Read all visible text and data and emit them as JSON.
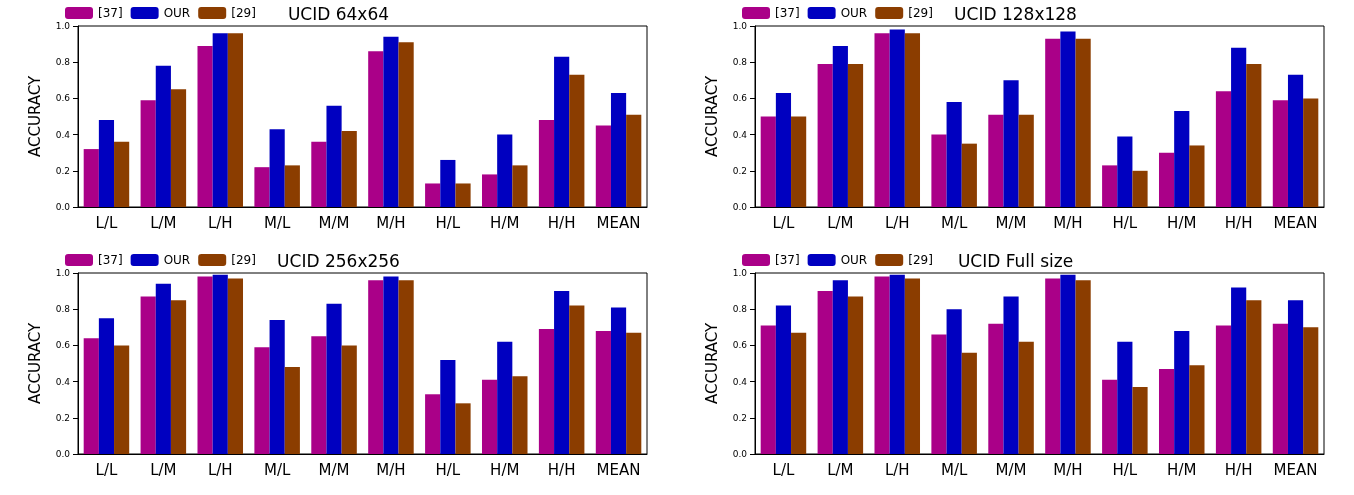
{
  "chart_data": [
    {
      "type": "bar",
      "title": "UCID 64x64",
      "ylabel": "ACCURACY",
      "categories": [
        "L/L",
        "L/M",
        "L/H",
        "M/L",
        "M/M",
        "M/H",
        "H/L",
        "H/M",
        "H/H",
        "MEAN"
      ],
      "series": [
        {
          "name": "[37]",
          "color": "#aa0088",
          "values": [
            0.32,
            0.59,
            0.89,
            0.22,
            0.36,
            0.86,
            0.13,
            0.18,
            0.48,
            0.45
          ]
        },
        {
          "name": "OUR",
          "color": "#0000c0",
          "values": [
            0.48,
            0.78,
            0.96,
            0.43,
            0.56,
            0.94,
            0.26,
            0.4,
            0.83,
            0.63
          ]
        },
        {
          "name": "[29]",
          "color": "#8b3d00",
          "values": [
            0.36,
            0.65,
            0.96,
            0.23,
            0.42,
            0.91,
            0.13,
            0.23,
            0.73,
            0.51
          ]
        }
      ],
      "ylim": [
        0,
        1
      ],
      "yticks": [
        {
          "value": 0,
          "label": "0.0"
        },
        {
          "value": 0.2,
          "label": "0.2"
        },
        {
          "value": 0.4,
          "label": "0.4"
        },
        {
          "value": 0.6,
          "label": "0.6"
        },
        {
          "value": 0.8,
          "label": "0.8"
        },
        {
          "value": 1,
          "label": "1.0"
        }
      ],
      "grid": false,
      "legend": "top left"
    },
    {
      "type": "bar",
      "title": "UCID 128x128",
      "ylabel": "ACCURACY",
      "categories": [
        "L/L",
        "L/M",
        "L/H",
        "M/L",
        "M/M",
        "M/H",
        "H/L",
        "H/M",
        "H/H",
        "MEAN"
      ],
      "series": [
        {
          "name": "[37]",
          "color": "#aa0088",
          "values": [
            0.5,
            0.79,
            0.96,
            0.4,
            0.51,
            0.93,
            0.23,
            0.3,
            0.64,
            0.59
          ]
        },
        {
          "name": "OUR",
          "color": "#0000c0",
          "values": [
            0.63,
            0.89,
            0.98,
            0.58,
            0.7,
            0.97,
            0.39,
            0.53,
            0.88,
            0.73
          ]
        },
        {
          "name": "[29]",
          "color": "#8b3d00",
          "values": [
            0.5,
            0.79,
            0.96,
            0.35,
            0.51,
            0.93,
            0.2,
            0.34,
            0.79,
            0.6
          ]
        }
      ],
      "ylim": [
        0,
        1
      ],
      "yticks": [
        {
          "value": 0,
          "label": "0.0"
        },
        {
          "value": 0.2,
          "label": "0.2"
        },
        {
          "value": 0.4,
          "label": "0.4"
        },
        {
          "value": 0.6,
          "label": "0.6"
        },
        {
          "value": 0.8,
          "label": "0.8"
        },
        {
          "value": 1,
          "label": "1.0"
        }
      ],
      "grid": false,
      "legend": "top left"
    },
    {
      "type": "bar",
      "title": "UCID 256x256",
      "ylabel": "ACCURACY",
      "categories": [
        "L/L",
        "L/M",
        "L/H",
        "M/L",
        "M/M",
        "M/H",
        "H/L",
        "H/M",
        "H/H",
        "MEAN"
      ],
      "series": [
        {
          "name": "[37]",
          "color": "#aa0088",
          "values": [
            0.64,
            0.87,
            0.98,
            0.59,
            0.65,
            0.96,
            0.33,
            0.41,
            0.69,
            0.68
          ]
        },
        {
          "name": "OUR",
          "color": "#0000c0",
          "values": [
            0.75,
            0.94,
            0.99,
            0.74,
            0.83,
            0.98,
            0.52,
            0.62,
            0.9,
            0.81
          ]
        },
        {
          "name": "[29]",
          "color": "#8b3d00",
          "values": [
            0.6,
            0.85,
            0.97,
            0.48,
            0.6,
            0.96,
            0.28,
            0.43,
            0.82,
            0.67
          ]
        }
      ],
      "ylim": [
        0,
        1
      ],
      "yticks": [
        {
          "value": 0,
          "label": "0.0"
        },
        {
          "value": 0.2,
          "label": "0.2"
        },
        {
          "value": 0.4,
          "label": "0.4"
        },
        {
          "value": 0.6,
          "label": "0.6"
        },
        {
          "value": 0.8,
          "label": "0.8"
        },
        {
          "value": 1,
          "label": "1.0"
        }
      ],
      "grid": false,
      "legend": "top left"
    },
    {
      "type": "bar",
      "title": "UCID Full size",
      "ylabel": "ACCURACY",
      "categories": [
        "L/L",
        "L/M",
        "L/H",
        "M/L",
        "M/M",
        "M/H",
        "H/L",
        "H/M",
        "H/H",
        "MEAN"
      ],
      "series": [
        {
          "name": "[37]",
          "color": "#aa0088",
          "values": [
            0.71,
            0.9,
            0.98,
            0.66,
            0.72,
            0.97,
            0.41,
            0.47,
            0.71,
            0.72
          ]
        },
        {
          "name": "OUR",
          "color": "#0000c0",
          "values": [
            0.82,
            0.96,
            0.99,
            0.8,
            0.87,
            0.99,
            0.62,
            0.68,
            0.92,
            0.85
          ]
        },
        {
          "name": "[29]",
          "color": "#8b3d00",
          "values": [
            0.67,
            0.87,
            0.97,
            0.56,
            0.62,
            0.96,
            0.37,
            0.49,
            0.85,
            0.7
          ]
        }
      ],
      "ylim": [
        0,
        1
      ],
      "yticks": [
        {
          "value": 0,
          "label": "0.0"
        },
        {
          "value": 0.2,
          "label": "0.2"
        },
        {
          "value": 0.4,
          "label": "0.4"
        },
        {
          "value": 0.6,
          "label": "0.6"
        },
        {
          "value": 0.8,
          "label": "0.8"
        },
        {
          "value": 1,
          "label": "1.0"
        }
      ],
      "grid": false,
      "legend": "top left"
    }
  ]
}
